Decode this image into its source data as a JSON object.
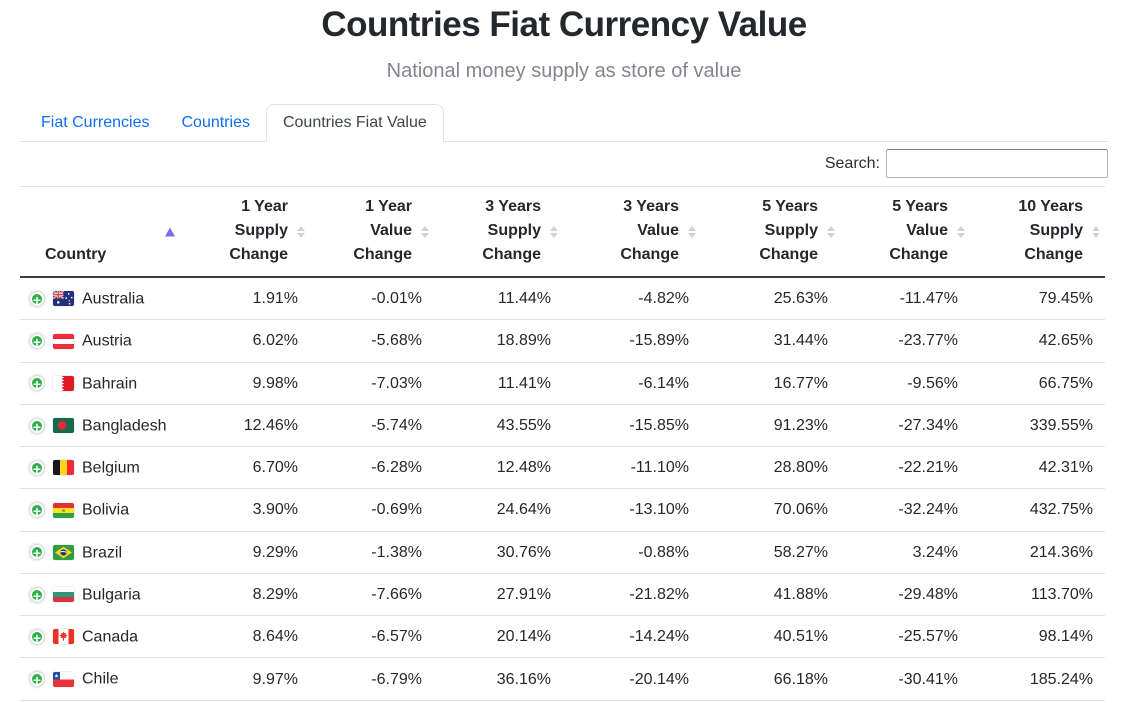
{
  "page": {
    "title": "Countries Fiat Currency Value",
    "subtitle": "National money supply as store of value"
  },
  "tabs": [
    {
      "label": "Fiat Currencies",
      "active": false
    },
    {
      "label": "Countries",
      "active": false
    },
    {
      "label": "Countries Fiat Value",
      "active": true
    }
  ],
  "search": {
    "label": "Search:",
    "value": ""
  },
  "table": {
    "sorted_column": "Country",
    "sort_direction": "ascending",
    "columns": [
      {
        "id": "country",
        "lines": [
          "Country"
        ],
        "sort": "asc",
        "align": "left"
      },
      {
        "id": "supply-1y",
        "lines": [
          "1 Year",
          "Supply",
          "Change"
        ],
        "sort": "none",
        "align": "right"
      },
      {
        "id": "value-1y",
        "lines": [
          "1 Year",
          "Value",
          "Change"
        ],
        "sort": "none",
        "align": "right"
      },
      {
        "id": "supply-3y",
        "lines": [
          "3 Years",
          "Supply",
          "Change"
        ],
        "sort": "none",
        "align": "right"
      },
      {
        "id": "value-3y",
        "lines": [
          "3 Years",
          "Value",
          "Change"
        ],
        "sort": "none",
        "align": "right"
      },
      {
        "id": "supply-5y",
        "lines": [
          "5 Years",
          "Supply",
          "Change"
        ],
        "sort": "none",
        "align": "right"
      },
      {
        "id": "value-5y",
        "lines": [
          "5 Years",
          "Value",
          "Change"
        ],
        "sort": "none",
        "align": "right"
      },
      {
        "id": "supply-10y",
        "lines": [
          "10 Years",
          "Supply",
          "Change"
        ],
        "sort": "none",
        "align": "right"
      }
    ],
    "expand_icon": "plus-icon",
    "rows": [
      {
        "country": "Australia",
        "flag": "australia",
        "values": [
          "1.91%",
          "-0.01%",
          "11.44%",
          "-4.82%",
          "25.63%",
          "-11.47%",
          "79.45%"
        ]
      },
      {
        "country": "Austria",
        "flag": "austria",
        "values": [
          "6.02%",
          "-5.68%",
          "18.89%",
          "-15.89%",
          "31.44%",
          "-23.77%",
          "42.65%"
        ]
      },
      {
        "country": "Bahrain",
        "flag": "bahrain",
        "values": [
          "9.98%",
          "-7.03%",
          "11.41%",
          "-6.14%",
          "16.77%",
          "-9.56%",
          "66.75%"
        ]
      },
      {
        "country": "Bangladesh",
        "flag": "bangladesh",
        "values": [
          "12.46%",
          "-5.74%",
          "43.55%",
          "-15.85%",
          "91.23%",
          "-27.34%",
          "339.55%"
        ]
      },
      {
        "country": "Belgium",
        "flag": "belgium",
        "values": [
          "6.70%",
          "-6.28%",
          "12.48%",
          "-11.10%",
          "28.80%",
          "-22.21%",
          "42.31%"
        ]
      },
      {
        "country": "Bolivia",
        "flag": "bolivia",
        "values": [
          "3.90%",
          "-0.69%",
          "24.64%",
          "-13.10%",
          "70.06%",
          "-32.24%",
          "432.75%"
        ]
      },
      {
        "country": "Brazil",
        "flag": "brazil",
        "values": [
          "9.29%",
          "-1.38%",
          "30.76%",
          "-0.88%",
          "58.27%",
          "3.24%",
          "214.36%"
        ]
      },
      {
        "country": "Bulgaria",
        "flag": "bulgaria",
        "values": [
          "8.29%",
          "-7.66%",
          "27.91%",
          "-21.82%",
          "41.88%",
          "-29.48%",
          "113.70%"
        ]
      },
      {
        "country": "Canada",
        "flag": "canada",
        "values": [
          "8.64%",
          "-6.57%",
          "20.14%",
          "-14.24%",
          "40.51%",
          "-25.57%",
          "98.14%"
        ]
      },
      {
        "country": "Chile",
        "flag": "chile",
        "values": [
          "9.97%",
          "-6.79%",
          "36.16%",
          "-20.14%",
          "66.18%",
          "-30.41%",
          "185.24%"
        ]
      }
    ]
  },
  "colors": {
    "link_blue": "#0d6efd",
    "sort_active_purple": "#7a6ee0",
    "expand_green": "#29b148",
    "border_light": "#dee2e6",
    "header_border_dark": "#383d42",
    "subtitle_gray": "#82868c"
  }
}
